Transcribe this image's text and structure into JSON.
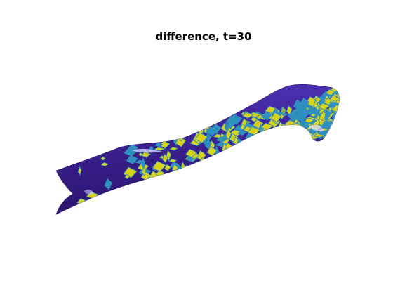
{
  "figure": {
    "title": "difference, t=30",
    "colors": {
      "background": "#ffffff",
      "surface_low": "#3a1f8c",
      "surface_low_shade": "#2a156e",
      "surface_mid": "#2f8fbf",
      "surface_high": "#d8d21a",
      "highlight": "#c9c6ff"
    }
  }
}
